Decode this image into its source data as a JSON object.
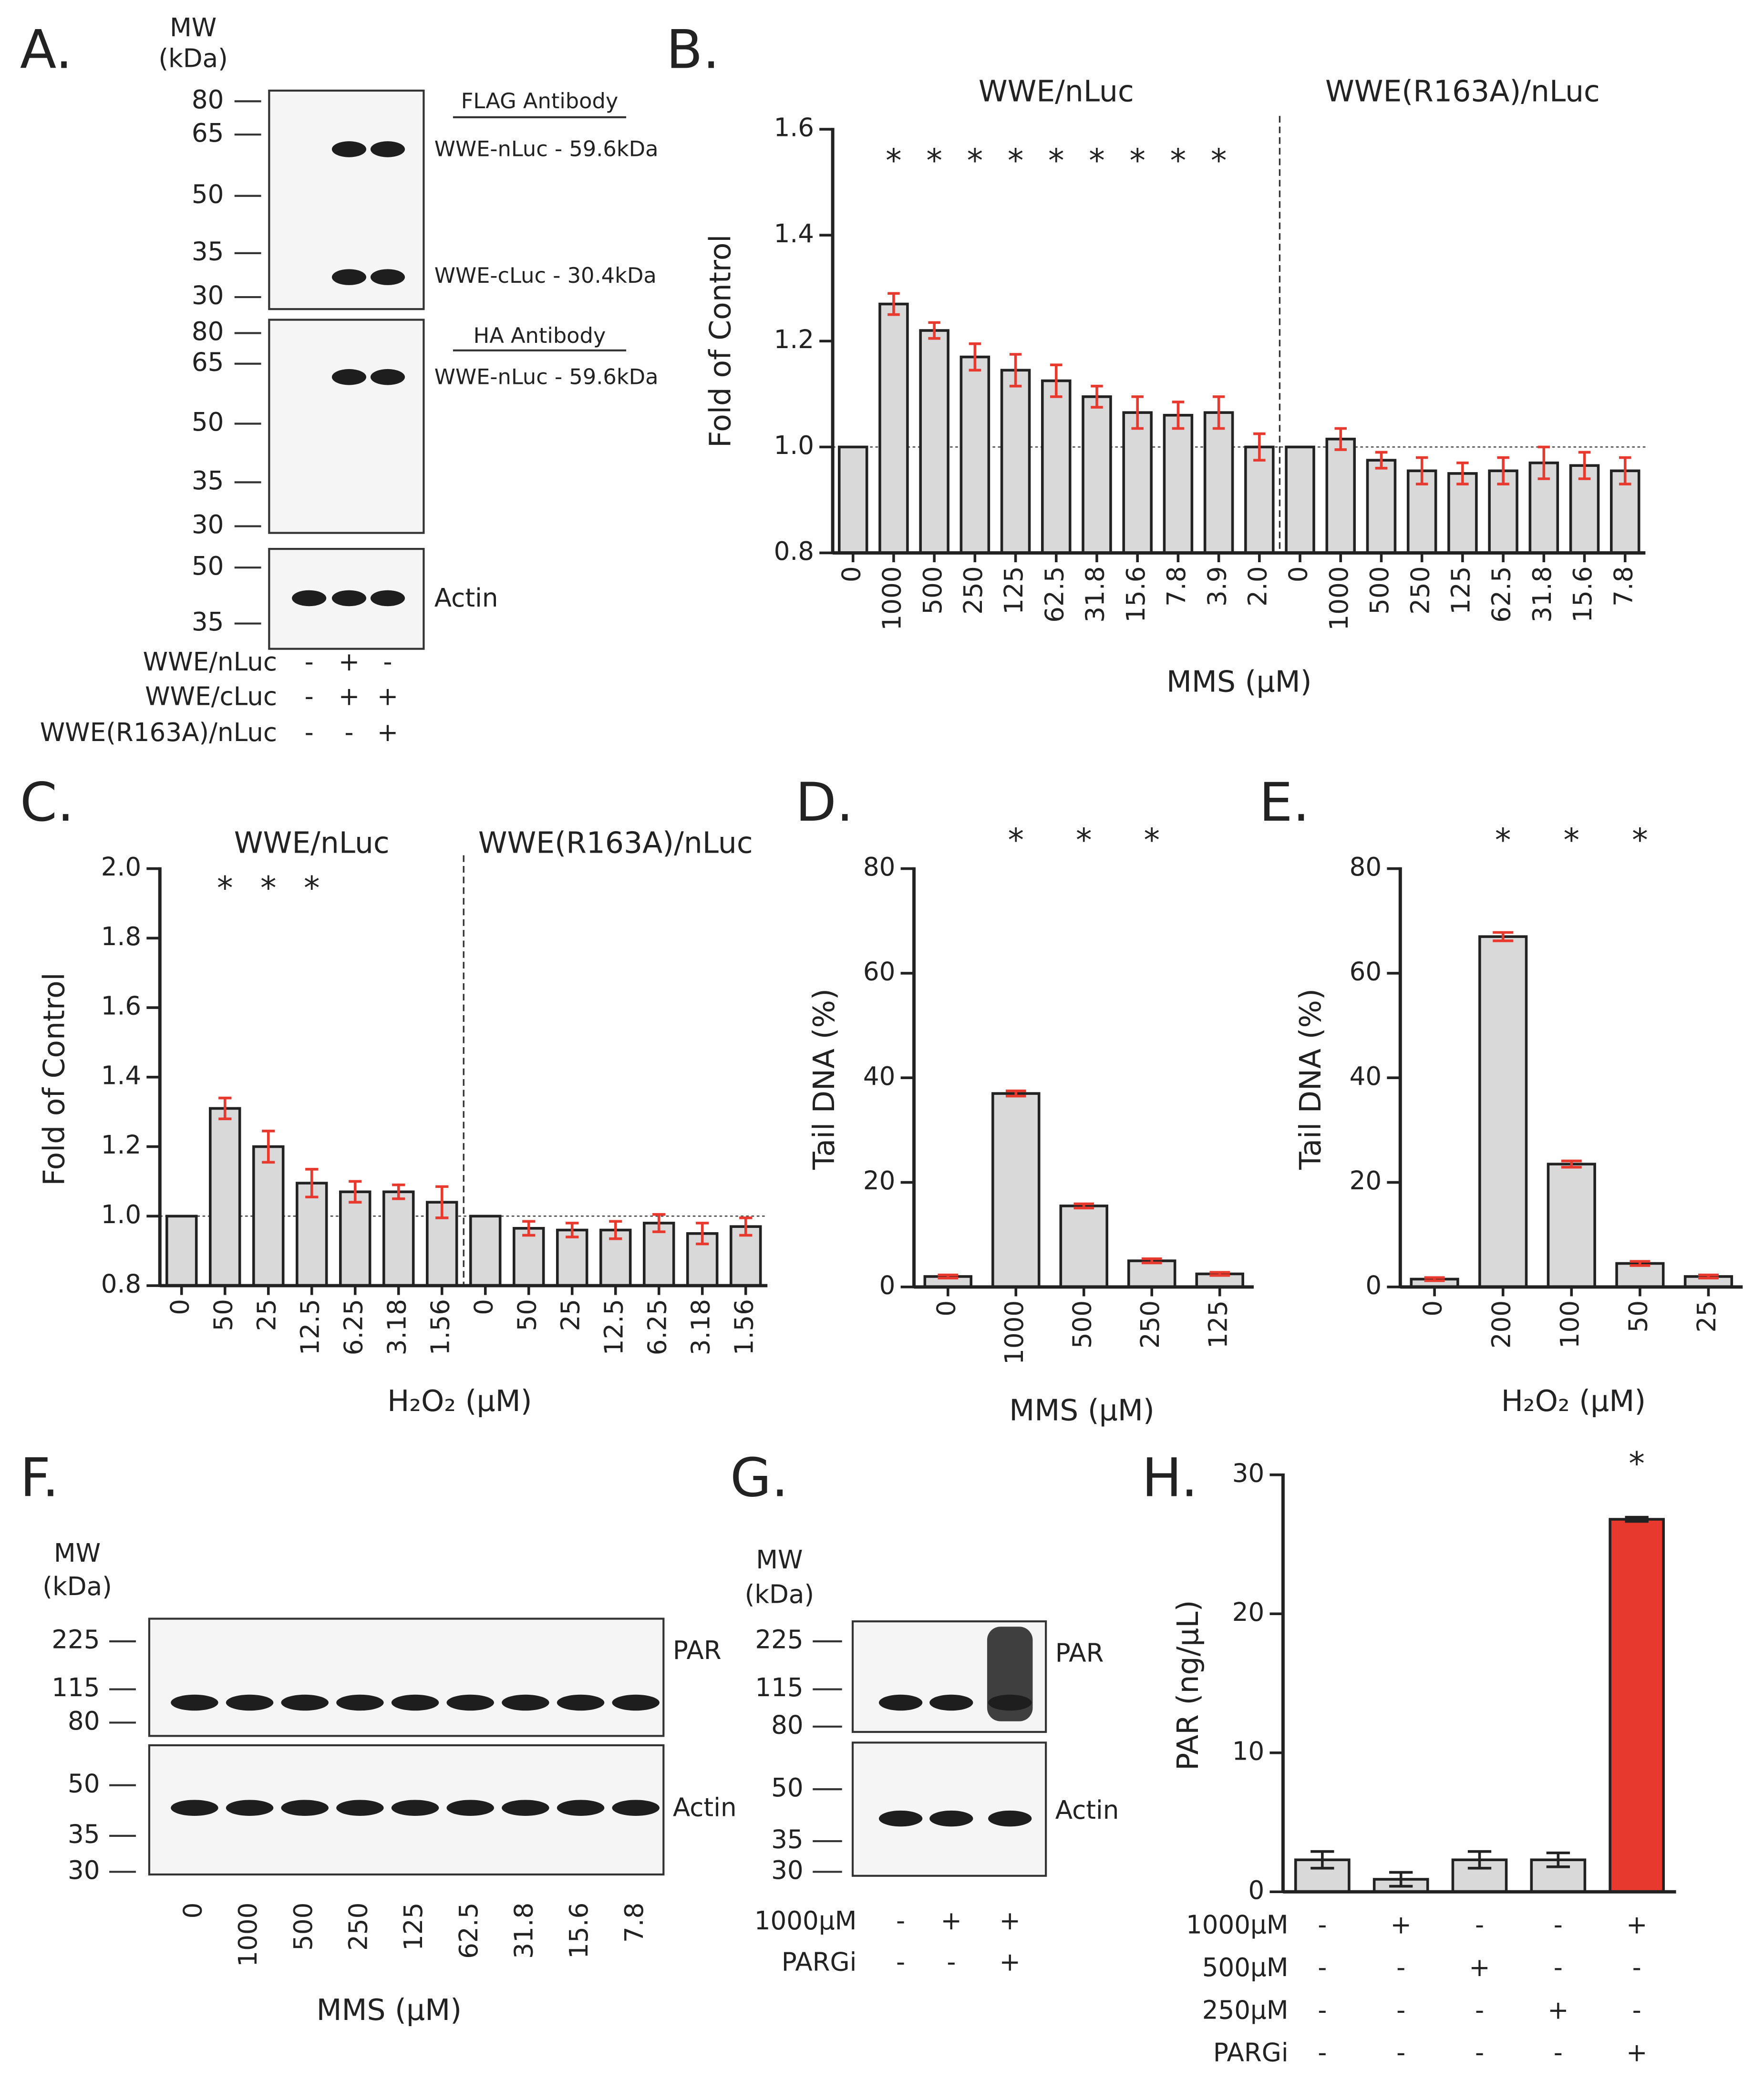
{
  "chart_data": [
    {
      "type": "bar",
      "panel": "B.",
      "ylabel": "Fold of Control",
      "xlabel": "MMS (μM)",
      "groups": [
        {
          "label": "WWE/nLuc",
          "count": 11
        },
        {
          "label": "WWE(R163A)/nLuc",
          "count": 9
        }
      ],
      "categories": [
        "0",
        "1000",
        "500",
        "250",
        "125",
        "62.5",
        "31.8",
        "15.6",
        "7.8",
        "3.9",
        "2.0",
        "0",
        "1000",
        "500",
        "250",
        "125",
        "62.5",
        "31.8",
        "15.6",
        "7.8"
      ],
      "values": [
        1.0,
        1.27,
        1.22,
        1.17,
        1.145,
        1.125,
        1.095,
        1.065,
        1.06,
        1.065,
        1.0,
        1.0,
        1.015,
        0.975,
        0.955,
        0.95,
        0.955,
        0.97,
        0.965,
        0.955
      ],
      "errors": [
        0,
        0.02,
        0.015,
        0.025,
        0.03,
        0.03,
        0.02,
        0.03,
        0.025,
        0.03,
        0.025,
        0,
        0.02,
        0.015,
        0.025,
        0.02,
        0.025,
        0.03,
        0.025,
        0.025
      ],
      "significance": [
        null,
        "*",
        "*",
        "*",
        "*",
        "*",
        "*",
        "*",
        "*",
        "*",
        null,
        null,
        null,
        null,
        null,
        null,
        null,
        null,
        null,
        null
      ],
      "color": "#d9d9d9",
      "error_color": "#e8392e",
      "reference_line": 1,
      "ylim": [
        0.8,
        1.6
      ],
      "yticks": [
        0.8,
        {
          "value": 1,
          "label": "1.0"
        },
        1.2,
        1.4,
        1.6
      ]
    },
    {
      "type": "bar",
      "panel": "C.",
      "ylabel": "Fold of Control",
      "xlabel": "H₂O₂ (μM)",
      "groups": [
        {
          "label": "WWE/nLuc",
          "count": 7
        },
        {
          "label": "WWE(R163A)/nLuc",
          "count": 7
        }
      ],
      "categories": [
        "0",
        "50",
        "25",
        "12.5",
        "6.25",
        "3.18",
        "1.56",
        "0",
        "50",
        "25",
        "12.5",
        "6.25",
        "3.18",
        "1.56"
      ],
      "values": [
        1.0,
        1.31,
        1.2,
        1.095,
        1.07,
        1.07,
        1.04,
        1.0,
        0.965,
        0.96,
        0.96,
        0.98,
        0.95,
        0.97
      ],
      "errors": [
        0,
        0.03,
        0.045,
        0.04,
        0.03,
        0.02,
        0.045,
        0,
        0.02,
        0.02,
        0.025,
        0.025,
        0.03,
        0.025
      ],
      "significance": [
        null,
        "*",
        "*",
        "*",
        null,
        null,
        null,
        null,
        null,
        null,
        null,
        null,
        null,
        null
      ],
      "color": "#d9d9d9",
      "error_color": "#e8392e",
      "reference_line": 1,
      "ylim": [
        0.8,
        2.0
      ],
      "yticks": [
        0.8,
        {
          "value": 1,
          "label": "1.0"
        },
        1.2,
        1.4,
        1.6,
        1.8,
        {
          "value": 2,
          "label": "2.0"
        }
      ]
    },
    {
      "type": "bar",
      "panel": "D.",
      "ylabel": "Tail DNA (%)",
      "xlabel": "MMS (μM)",
      "categories": [
        "0",
        "1000",
        "500",
        "250",
        "125"
      ],
      "values": [
        2,
        37,
        15.5,
        5,
        2.5
      ],
      "errors": [
        0.3,
        0.5,
        0.4,
        0.4,
        0.3
      ],
      "significance": [
        null,
        "*",
        "*",
        "*",
        null
      ],
      "color": "#d9d9d9",
      "error_color": "#e8392e",
      "ylim": [
        0,
        80
      ],
      "yticks": [
        0,
        20,
        40,
        60,
        80
      ]
    },
    {
      "type": "bar",
      "panel": "E.",
      "ylabel": "Tail DNA (%)",
      "xlabel": "H₂O₂ (μM)",
      "categories": [
        "0",
        "200",
        "100",
        "50",
        "25"
      ],
      "values": [
        1.5,
        67,
        23.5,
        4.5,
        2
      ],
      "errors": [
        0.3,
        0.8,
        0.6,
        0.4,
        0.3
      ],
      "significance": [
        null,
        "*",
        "*",
        "*",
        null
      ],
      "color": "#d9d9d9",
      "error_color": "#e8392e",
      "ylim": [
        0,
        80
      ],
      "yticks": [
        0,
        20,
        40,
        60,
        80
      ]
    },
    {
      "type": "bar",
      "panel": "H.",
      "ylabel": "PAR (ng/μL)",
      "values": [
        2.3,
        0.9,
        2.3,
        2.3,
        26.8
      ],
      "errors": [
        0.6,
        0.5,
        0.6,
        0.5,
        0.15
      ],
      "significance": [
        null,
        null,
        null,
        null,
        "*"
      ],
      "colors": [
        "#d9d9d9",
        "#d9d9d9",
        "#d9d9d9",
        "#d9d9d9",
        "#e8392e"
      ],
      "error_color": "#222222",
      "conditions": [
        {
          "label": "1000μM",
          "signs": [
            "-",
            "+",
            "-",
            "-",
            "+"
          ]
        },
        {
          "label": "500μM",
          "signs": [
            "-",
            "-",
            "+",
            "-",
            "-"
          ]
        },
        {
          "label": "250μM",
          "signs": [
            "-",
            "-",
            "-",
            "+",
            "-"
          ]
        },
        {
          "label": "PARGi",
          "signs": [
            "-",
            "-",
            "-",
            "-",
            "+"
          ]
        }
      ],
      "ylim": [
        0,
        30
      ],
      "yticks": [
        0,
        10,
        20,
        30
      ]
    }
  ],
  "blots": [
    {
      "panel": "A.",
      "mw": [
        "MW",
        "(kDa)"
      ],
      "membranes": [
        {
          "ladder": [
            80,
            65,
            50,
            35,
            30
          ],
          "antibody": "FLAG Antibody",
          "bands": [
            "WWE-nLuc - 59.6kDa",
            "WWE-cLuc - 30.4kDa"
          ]
        },
        {
          "ladder": [
            80,
            65,
            50,
            35,
            30
          ],
          "antibody": "HA Antibody",
          "bands": [
            "WWE-nLuc - 59.6kDa"
          ]
        },
        {
          "ladder": [
            50,
            35
          ],
          "label": "Actin"
        }
      ],
      "conditions": [
        {
          "label": "WWE/nLuc",
          "signs": [
            "-",
            "+",
            "-"
          ]
        },
        {
          "label": "WWE/cLuc",
          "signs": [
            "-",
            "+",
            "+"
          ]
        },
        {
          "label": "WWE(R163A)/nLuc",
          "signs": [
            "-",
            "-",
            "+"
          ]
        }
      ]
    },
    {
      "panel": "F.",
      "mw": [
        "MW",
        "(kDa)"
      ],
      "membranes": [
        {
          "ladder": [
            225,
            115,
            80
          ],
          "label": "PAR"
        },
        {
          "ladder": [
            50,
            35,
            30
          ],
          "label": "Actin"
        }
      ],
      "lanes": [
        "0",
        "1000",
        "500",
        "250",
        "125",
        "62.5",
        "31.8",
        "15.6",
        "7.8"
      ],
      "xlabel": "MMS (μM)"
    },
    {
      "panel": "G.",
      "mw": [
        "MW",
        "(kDa)"
      ],
      "membranes": [
        {
          "ladder": [
            225,
            115,
            80
          ],
          "label": "PAR"
        },
        {
          "ladder": [
            50,
            35,
            30
          ],
          "label": "Actin"
        }
      ],
      "conditions": [
        {
          "label": "1000μM",
          "signs": [
            "-",
            "+",
            "+"
          ]
        },
        {
          "label": "PARGi",
          "signs": [
            "-",
            "-",
            "+"
          ]
        }
      ]
    }
  ]
}
